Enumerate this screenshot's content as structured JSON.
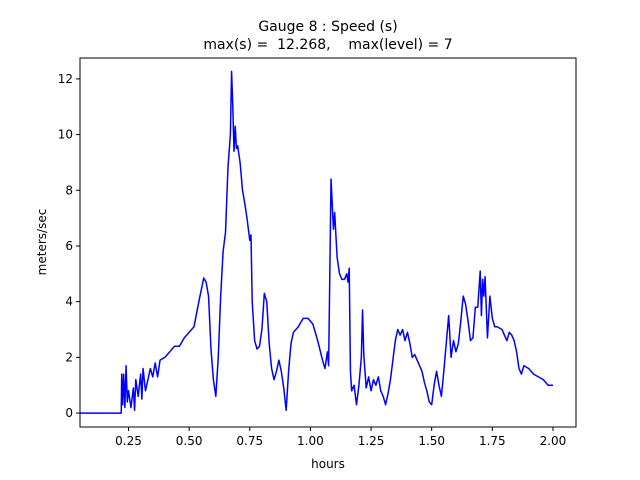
{
  "chart_data": {
    "type": "line",
    "title": "Gauge 8 : Speed (s)",
    "subtitle": "max(s) =  12.268,    max(level) = 7",
    "xlabel": "hours",
    "ylabel": "meters/sec",
    "xlim": [
      0.05,
      2.095
    ],
    "ylim": [
      -0.5,
      12.75
    ],
    "xticks": [
      0.25,
      {
        "value": 0.5,
        "label": "0.50"
      },
      0.75,
      {
        "value": 1,
        "label": "1.00"
      },
      1.25,
      {
        "value": 1.5,
        "label": "1.50"
      },
      1.75,
      {
        "value": 2,
        "label": "2.00"
      }
    ],
    "yticks": [
      0,
      2,
      4,
      6,
      8,
      10,
      12
    ],
    "x": [
      0.05,
      0.22,
      0.222,
      0.226,
      0.23,
      0.235,
      0.24,
      0.245,
      0.25,
      0.26,
      0.27,
      0.275,
      0.28,
      0.29,
      0.3,
      0.305,
      0.31,
      0.32,
      0.33,
      0.34,
      0.35,
      0.36,
      0.37,
      0.38,
      0.4,
      0.42,
      0.44,
      0.46,
      0.48,
      0.5,
      0.52,
      0.54,
      0.56,
      0.57,
      0.58,
      0.59,
      0.6,
      0.61,
      0.62,
      0.63,
      0.64,
      0.65,
      0.66,
      0.67,
      0.675,
      0.68,
      0.685,
      0.69,
      0.695,
      0.7,
      0.71,
      0.72,
      0.73,
      0.74,
      0.75,
      0.755,
      0.76,
      0.77,
      0.78,
      0.79,
      0.8,
      0.81,
      0.82,
      0.83,
      0.84,
      0.85,
      0.86,
      0.87,
      0.88,
      0.89,
      0.9,
      0.91,
      0.92,
      0.93,
      0.95,
      0.97,
      0.99,
      1.01,
      1.03,
      1.05,
      1.06,
      1.07,
      1.075,
      1.08,
      1.085,
      1.09,
      1.095,
      1.1,
      1.11,
      1.12,
      1.13,
      1.14,
      1.15,
      1.155,
      1.16,
      1.165,
      1.17,
      1.18,
      1.19,
      1.2,
      1.21,
      1.215,
      1.22,
      1.23,
      1.24,
      1.25,
      1.26,
      1.27,
      1.28,
      1.29,
      1.3,
      1.31,
      1.32,
      1.33,
      1.35,
      1.36,
      1.37,
      1.38,
      1.39,
      1.4,
      1.41,
      1.42,
      1.43,
      1.44,
      1.45,
      1.46,
      1.47,
      1.48,
      1.49,
      1.5,
      1.51,
      1.52,
      1.53,
      1.54,
      1.55,
      1.56,
      1.57,
      1.58,
      1.59,
      1.6,
      1.61,
      1.62,
      1.63,
      1.64,
      1.65,
      1.66,
      1.67,
      1.68,
      1.69,
      1.7,
      1.705,
      1.71,
      1.715,
      1.72,
      1.73,
      1.74,
      1.75,
      1.76,
      1.77,
      1.79,
      1.81,
      1.82,
      1.83,
      1.84,
      1.85,
      1.86,
      1.87,
      1.88,
      1.9,
      1.92,
      1.94,
      1.96,
      1.98,
      2.0
    ],
    "series": [
      {
        "name": "Speed",
        "color": "#0000ff",
        "values": [
          0,
          0,
          1.4,
          0.3,
          1.4,
          0.2,
          1.7,
          0.4,
          0.8,
          0.2,
          0.9,
          0.1,
          1.2,
          0.6,
          1.4,
          0.5,
          1.6,
          0.8,
          1.2,
          1.6,
          1.3,
          1.8,
          1.3,
          1.9,
          2.0,
          2.2,
          2.4,
          2.4,
          2.7,
          2.9,
          3.1,
          4.0,
          4.85,
          4.7,
          4.2,
          2.3,
          1.2,
          0.6,
          2.0,
          4.2,
          5.8,
          6.5,
          8.8,
          10,
          12.268,
          11,
          9.4,
          10.3,
          9.5,
          9.6,
          9.0,
          8.0,
          7.5,
          6.9,
          6.2,
          6.4,
          4.0,
          2.6,
          2.3,
          2.4,
          3.0,
          4.3,
          4.0,
          2.5,
          1.6,
          1.2,
          1.5,
          1.9,
          1.5,
          0.9,
          0.1,
          1.5,
          2.5,
          2.9,
          3.1,
          3.4,
          3.4,
          3.2,
          2.6,
          1.9,
          1.6,
          2.2,
          1.7,
          5.0,
          8.4,
          7.5,
          6.6,
          7.2,
          5.6,
          5.0,
          4.8,
          4.8,
          5.0,
          4.7,
          5.2,
          1.5,
          0.8,
          1.0,
          0.3,
          1.0,
          2.0,
          3.7,
          2.1,
          0.9,
          1.3,
          0.8,
          1.2,
          1.0,
          1.3,
          0.8,
          0.6,
          0.3,
          0.7,
          1.2,
          2.6,
          3.0,
          2.8,
          3.0,
          2.6,
          2.9,
          2.5,
          2.0,
          2.1,
          1.9,
          1.7,
          1.5,
          1.1,
          0.8,
          0.4,
          0.3,
          1.0,
          1.5,
          1.0,
          0.6,
          1.5,
          2.5,
          3.5,
          2.0,
          2.6,
          2.2,
          2.5,
          3.3,
          4.2,
          3.9,
          3.3,
          2.6,
          2.7,
          3.8,
          3.8,
          5.1,
          3.5,
          4.8,
          4.2,
          4.9,
          2.7,
          4.2,
          3.4,
          3.1,
          3.1,
          3.0,
          2.6,
          2.9,
          2.8,
          2.6,
          2.2,
          1.6,
          1.4,
          1.7,
          1.6,
          1.4,
          1.3,
          1.2,
          1.0,
          1.0
        ]
      }
    ]
  }
}
